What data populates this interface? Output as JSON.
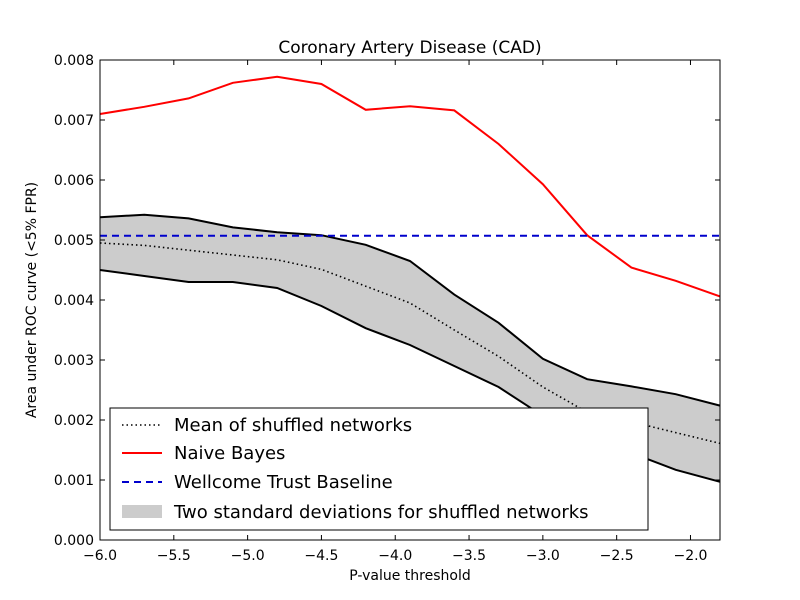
{
  "chart_data": {
    "type": "line",
    "title": "Coronary Artery Disease (CAD)",
    "xlabel": "P-value threshold",
    "ylabel": "Area under ROC curve (<5% FPR)",
    "xlim": [
      -6.0,
      -1.8
    ],
    "ylim": [
      0.0,
      0.008
    ],
    "x_ticks": [
      -6.0,
      -5.5,
      -5.0,
      -4.5,
      -4.0,
      -3.5,
      -3.0,
      -2.5,
      -2.0
    ],
    "x_tick_labels": [
      "−6.0",
      "−5.5",
      "−5.0",
      "−4.5",
      "−4.0",
      "−3.5",
      "−3.0",
      "−2.5",
      "−2.0"
    ],
    "y_ticks": [
      0.0,
      0.001,
      0.002,
      0.003,
      0.004,
      0.005,
      0.006,
      0.007,
      0.008
    ],
    "y_tick_labels": [
      "0.000",
      "0.001",
      "0.002",
      "0.003",
      "0.004",
      "0.005",
      "0.006",
      "0.007",
      "0.008"
    ],
    "grid": false,
    "legend_position": "lower-left",
    "x": [
      -6.0,
      -5.7,
      -5.4,
      -5.1,
      -4.8,
      -4.5,
      -4.2,
      -3.9,
      -3.6,
      -3.3,
      -3.0,
      -2.7,
      -2.4,
      -2.1,
      -1.8
    ],
    "series": [
      {
        "name": "Mean of shuffled networks",
        "style": "dotted",
        "color": "#000000",
        "values": [
          0.00495,
          0.00491,
          0.00483,
          0.00475,
          0.00467,
          0.00451,
          0.00423,
          0.00395,
          0.0035,
          0.00306,
          0.00255,
          0.00213,
          0.00197,
          0.00179,
          0.00161
        ]
      },
      {
        "name": "Naive Bayes",
        "style": "solid",
        "color": "#ff0000",
        "values": [
          0.0071,
          0.00722,
          0.00736,
          0.00762,
          0.00772,
          0.0076,
          0.00717,
          0.00723,
          0.00716,
          0.0066,
          0.00593,
          0.00508,
          0.00454,
          0.00432,
          0.00406
        ]
      },
      {
        "name": "Wellcome Trust Baseline",
        "style": "dashed",
        "color": "#0000cc",
        "values": [
          0.00507,
          0.00507,
          0.00507,
          0.00507,
          0.00507,
          0.00507,
          0.00507,
          0.00507,
          0.00507,
          0.00507,
          0.00507,
          0.00507,
          0.00507,
          0.00507,
          0.00507
        ]
      }
    ],
    "band": {
      "name": "Two standard deviations for shuffled networks",
      "fill_color": "#cccccc",
      "edge_color": "#000000",
      "upper": [
        0.00538,
        0.00542,
        0.00536,
        0.00521,
        0.00513,
        0.00508,
        0.00492,
        0.00465,
        0.00409,
        0.00362,
        0.00302,
        0.00268,
        0.00256,
        0.00243,
        0.00224
      ],
      "lower": [
        0.0045,
        0.0044,
        0.0043,
        0.0043,
        0.0042,
        0.0039,
        0.00353,
        0.00325,
        0.0029,
        0.00255,
        0.00207,
        0.00168,
        0.00145,
        0.00117,
        0.00097
      ]
    }
  }
}
